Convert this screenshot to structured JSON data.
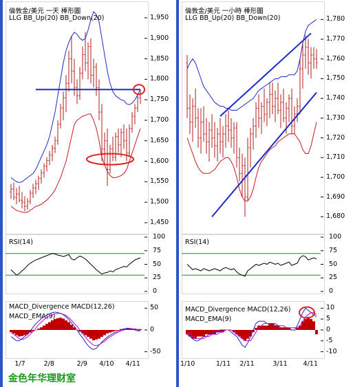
{
  "colors": {
    "price": "#b01818",
    "bb_up": "#1a2bc8",
    "bb_down": "#c81a1a",
    "rsi": "#000000",
    "rsi_band": "#1f8a1f",
    "macd_hist": "#c00000",
    "macd": "#1a2bc8",
    "ema": "#c800c8",
    "annot_line": "#1a2bc8",
    "annot_circle": "#e02020",
    "divider": "#2b58c8"
  },
  "footer": "金色年华理财室",
  "charts": [
    {
      "title": "倫敦金/美元 一天 棒形圖",
      "legend": "LLG  BB_Up(20)  BB_Down(20)",
      "rsi_label": "RSI(14)",
      "macd_label1": "MACD_Divergence   MACD(12,26)",
      "macd_label2": "MACD_EMA(9)",
      "price_ticks": [
        "1,950",
        "1,900",
        "1,850",
        "1,800",
        "1,750",
        "1,700",
        "1,650",
        "1,600",
        "1,550",
        "1,500",
        "1,450"
      ],
      "rsi_ticks": [
        "100",
        "75",
        "50",
        "25",
        "0"
      ],
      "macd_ticks": [
        "50",
        "0",
        "-50"
      ],
      "x_ticks": [
        "1/7",
        "2/8",
        "2/9",
        "4/10",
        "4/11"
      ]
    },
    {
      "title": "倫敦金/美元 一小時 棒形圖",
      "legend": "LLG  BB_Up(20)  BB_Down(20)",
      "rsi_label": "RSI(14)",
      "macd_label1": "MACD_Divergence   MACD(12,26)",
      "macd_label2": "MACD_EMA(9)",
      "price_ticks": [
        "1,780",
        "1,770",
        "1,760",
        "1,750",
        "1,740",
        "1,730",
        "1,720",
        "1,710",
        "1,700",
        "1,690",
        "1,680"
      ],
      "rsi_ticks": [
        "100",
        "75",
        "50",
        "25",
        "0"
      ],
      "macd_ticks": [
        "10",
        "5",
        "0",
        "-5",
        "-10"
      ],
      "x_ticks": [
        "1/10",
        "1/11",
        "2/11",
        "3/11",
        "4/11"
      ]
    }
  ],
  "chart_data": [
    {
      "type": "line",
      "name": "daily",
      "ylim": [
        1450,
        1970
      ],
      "price": [
        [
          1525,
          1545,
          1508,
          1532
        ],
        [
          1532,
          1548,
          1505,
          1512
        ],
        [
          1512,
          1535,
          1495,
          1520
        ],
        [
          1520,
          1540,
          1500,
          1505
        ],
        [
          1505,
          1525,
          1485,
          1500
        ],
        [
          1500,
          1515,
          1478,
          1490
        ],
        [
          1490,
          1510,
          1482,
          1502
        ],
        [
          1502,
          1530,
          1495,
          1522
        ],
        [
          1522,
          1545,
          1510,
          1535
        ],
        [
          1535,
          1555,
          1520,
          1545
        ],
        [
          1545,
          1565,
          1530,
          1558
        ],
        [
          1558,
          1580,
          1545,
          1572
        ],
        [
          1572,
          1595,
          1560,
          1588
        ],
        [
          1588,
          1610,
          1575,
          1602
        ],
        [
          1602,
          1625,
          1590,
          1615
        ],
        [
          1615,
          1640,
          1600,
          1632
        ],
        [
          1632,
          1660,
          1620,
          1650
        ],
        [
          1650,
          1700,
          1640,
          1690
        ],
        [
          1690,
          1740,
          1680,
          1730
        ],
        [
          1730,
          1770,
          1700,
          1755
        ],
        [
          1755,
          1810,
          1720,
          1790
        ],
        [
          1790,
          1870,
          1770,
          1850
        ],
        [
          1850,
          1905,
          1790,
          1820
        ],
        [
          1820,
          1850,
          1760,
          1780
        ],
        [
          1780,
          1800,
          1740,
          1760
        ],
        [
          1760,
          1830,
          1750,
          1815
        ],
        [
          1815,
          1880,
          1800,
          1860
        ],
        [
          1860,
          1915,
          1820,
          1840
        ],
        [
          1840,
          1890,
          1800,
          1880
        ],
        [
          1880,
          1900,
          1790,
          1810
        ],
        [
          1810,
          1850,
          1780,
          1830
        ],
        [
          1830,
          1840,
          1760,
          1780
        ],
        [
          1780,
          1800,
          1700,
          1720
        ],
        [
          1720,
          1740,
          1600,
          1630
        ],
        [
          1630,
          1670,
          1590,
          1650
        ],
        [
          1650,
          1680,
          1540,
          1580
        ],
        [
          1580,
          1640,
          1570,
          1630
        ],
        [
          1630,
          1660,
          1600,
          1610
        ],
        [
          1610,
          1670,
          1600,
          1660
        ],
        [
          1660,
          1680,
          1620,
          1640
        ],
        [
          1640,
          1680,
          1610,
          1670
        ],
        [
          1670,
          1690,
          1630,
          1650
        ],
        [
          1650,
          1680,
          1600,
          1620
        ],
        [
          1620,
          1690,
          1610,
          1680
        ],
        [
          1680,
          1720,
          1670,
          1710
        ],
        [
          1710,
          1740,
          1690,
          1730
        ],
        [
          1730,
          1760,
          1720,
          1755
        ],
        [
          1755,
          1775,
          1740,
          1765
        ]
      ],
      "bb_up": [
        1560,
        1555,
        1550,
        1548,
        1550,
        1555,
        1560,
        1565,
        1570,
        1580,
        1595,
        1610,
        1625,
        1640,
        1660,
        1690,
        1720,
        1760,
        1800,
        1840,
        1870,
        1890,
        1905,
        1915,
        1910,
        1900,
        1895,
        1900,
        1920,
        1945,
        1965,
        1958,
        1940,
        1900,
        1860,
        1820,
        1790,
        1770,
        1760,
        1755,
        1750,
        1748,
        1740,
        1738,
        1742,
        1750,
        1762,
        1775
      ],
      "bb_down": [
        1490,
        1485,
        1480,
        1478,
        1476,
        1475,
        1476,
        1480,
        1485,
        1490,
        1492,
        1495,
        1500,
        1505,
        1512,
        1520,
        1530,
        1545,
        1560,
        1580,
        1600,
        1630,
        1660,
        1690,
        1700,
        1705,
        1710,
        1712,
        1715,
        1715,
        1700,
        1680,
        1650,
        1610,
        1590,
        1575,
        1565,
        1560,
        1560,
        1562,
        1565,
        1570,
        1580,
        1600,
        1620,
        1640,
        1660,
        1680
      ],
      "hline": 1775,
      "rsi": [
        40,
        35,
        30,
        33,
        38,
        42,
        48,
        52,
        55,
        58,
        60,
        62,
        64,
        66,
        68,
        70,
        69,
        67,
        66,
        64,
        66,
        68,
        60,
        58,
        62,
        65,
        63,
        60,
        55,
        50,
        45,
        40,
        36,
        32,
        34,
        35,
        38,
        36,
        40,
        42,
        44,
        46,
        45,
        50,
        54,
        58,
        60,
        62
      ],
      "macd_hist": [
        -5,
        -8,
        -12,
        -15,
        -14,
        -12,
        -10,
        -6,
        -3,
        0,
        3,
        6,
        10,
        14,
        18,
        22,
        25,
        27,
        28,
        26,
        22,
        18,
        12,
        6,
        0,
        -4,
        -8,
        -12,
        -16,
        -20,
        -24,
        -22,
        -20,
        -16,
        -12,
        -8,
        -6,
        -4,
        -2,
        0,
        2,
        3,
        4,
        4,
        3,
        3,
        2,
        2
      ],
      "macd": [
        -15,
        -20,
        -25,
        -25,
        -20,
        -15,
        -10,
        -2,
        6,
        14,
        20,
        26,
        30,
        34,
        37,
        40,
        41,
        40,
        38,
        35,
        30,
        24,
        16,
        8,
        0,
        -10,
        -18,
        -28,
        -36,
        -42,
        -45,
        -42,
        -35,
        -28,
        -22,
        -16,
        -12,
        -8,
        -5,
        -2,
        0,
        2,
        4,
        4,
        2,
        0,
        -2,
        -2
      ],
      "ema": [
        -5,
        -10,
        -15,
        -20,
        -22,
        -20,
        -16,
        -10,
        -4,
        4,
        12,
        18,
        24,
        28,
        32,
        35,
        37,
        38,
        38,
        36,
        33,
        28,
        22,
        15,
        8,
        0,
        -8,
        -16,
        -24,
        -30,
        -35,
        -36,
        -34,
        -30,
        -26,
        -20,
        -16,
        -12,
        -8,
        -5,
        -2,
        0,
        2,
        3,
        3,
        2,
        0,
        -1
      ],
      "rsi_bands": [
        70,
        30
      ],
      "circles": [
        {
          "cx_index": 46.5,
          "price": 1775
        },
        {
          "cx_index": 36,
          "price": 1605
        }
      ]
    },
    {
      "type": "line",
      "name": "hourly",
      "ylim": [
        1677,
        1785
      ],
      "price": [
        [
          1758,
          1762,
          1730,
          1735
        ],
        [
          1735,
          1742,
          1722,
          1728
        ],
        [
          1728,
          1740,
          1718,
          1736
        ],
        [
          1736,
          1745,
          1725,
          1730
        ],
        [
          1730,
          1735,
          1715,
          1720
        ],
        [
          1720,
          1735,
          1712,
          1728
        ],
        [
          1728,
          1736,
          1718,
          1722
        ],
        [
          1722,
          1730,
          1712,
          1718
        ],
        [
          1718,
          1728,
          1708,
          1724
        ],
        [
          1724,
          1732,
          1715,
          1720
        ],
        [
          1720,
          1728,
          1710,
          1716
        ],
        [
          1716,
          1725,
          1708,
          1722
        ],
        [
          1722,
          1730,
          1712,
          1718
        ],
        [
          1718,
          1726,
          1710,
          1722
        ],
        [
          1722,
          1732,
          1715,
          1726
        ],
        [
          1726,
          1734,
          1718,
          1724
        ],
        [
          1724,
          1730,
          1715,
          1720
        ],
        [
          1720,
          1728,
          1712,
          1725
        ],
        [
          1725,
          1728,
          1705,
          1710
        ],
        [
          1710,
          1715,
          1698,
          1702
        ],
        [
          1702,
          1712,
          1690,
          1706
        ],
        [
          1706,
          1710,
          1680,
          1690
        ],
        [
          1690,
          1720,
          1688,
          1715
        ],
        [
          1715,
          1725,
          1705,
          1722
        ],
        [
          1722,
          1730,
          1714,
          1726
        ],
        [
          1726,
          1738,
          1720,
          1735
        ],
        [
          1735,
          1742,
          1725,
          1730
        ],
        [
          1730,
          1738,
          1722,
          1736
        ],
        [
          1736,
          1745,
          1728,
          1732
        ],
        [
          1732,
          1740,
          1726,
          1738
        ],
        [
          1738,
          1748,
          1730,
          1742
        ],
        [
          1742,
          1748,
          1732,
          1736
        ],
        [
          1736,
          1744,
          1728,
          1740
        ],
        [
          1740,
          1748,
          1732,
          1734
        ],
        [
          1734,
          1742,
          1725,
          1738
        ],
        [
          1738,
          1745,
          1728,
          1730
        ],
        [
          1730,
          1738,
          1722,
          1735
        ],
        [
          1735,
          1742,
          1728,
          1740
        ],
        [
          1740,
          1745,
          1722,
          1726
        ],
        [
          1726,
          1736,
          1722,
          1732
        ],
        [
          1732,
          1740,
          1728,
          1736
        ],
        [
          1736,
          1760,
          1732,
          1755
        ],
        [
          1755,
          1768,
          1745,
          1762
        ],
        [
          1762,
          1772,
          1755,
          1766
        ],
        [
          1766,
          1770,
          1752,
          1758
        ],
        [
          1758,
          1766,
          1750,
          1762
        ],
        [
          1762,
          1766,
          1755,
          1760
        ],
        [
          1760,
          1765,
          1755,
          1758
        ]
      ],
      "bb_up": [
        1755,
        1758,
        1760,
        1758,
        1754,
        1750,
        1746,
        1744,
        1742,
        1740,
        1738,
        1737,
        1736,
        1736,
        1735,
        1735,
        1734,
        1734,
        1734,
        1735,
        1736,
        1737,
        1738,
        1739,
        1740,
        1742,
        1744,
        1745,
        1746,
        1747,
        1748,
        1749,
        1750,
        1750,
        1751,
        1751,
        1751,
        1752,
        1752,
        1752,
        1754,
        1760,
        1768,
        1774,
        1777,
        1778,
        1779,
        1780
      ],
      "bb_down": [
        1720,
        1716,
        1712,
        1708,
        1705,
        1703,
        1702,
        1702,
        1702,
        1703,
        1704,
        1706,
        1708,
        1709,
        1710,
        1710,
        1708,
        1705,
        1700,
        1694,
        1690,
        1688,
        1688,
        1690,
        1694,
        1700,
        1705,
        1708,
        1710,
        1712,
        1714,
        1715,
        1716,
        1718,
        1719,
        1720,
        1721,
        1722,
        1722,
        1722,
        1720,
        1718,
        1714,
        1712,
        1712,
        1716,
        1722,
        1728
      ],
      "channel_upper": [
        [
          12,
          1731
        ],
        [
          45,
          1773
        ]
      ],
      "channel_lower": [
        [
          9,
          1680
        ],
        [
          47,
          1743
        ]
      ],
      "rsi": [
        50,
        45,
        40,
        42,
        40,
        38,
        42,
        40,
        38,
        40,
        42,
        40,
        38,
        42,
        44,
        42,
        40,
        42,
        36,
        32,
        30,
        28,
        38,
        42,
        46,
        50,
        48,
        50,
        52,
        50,
        54,
        52,
        50,
        52,
        48,
        50,
        52,
        54,
        48,
        50,
        52,
        62,
        66,
        64,
        58,
        60,
        62,
        60
      ],
      "macd_hist": [
        -2,
        -3,
        -4,
        -4,
        -3,
        -3,
        -3,
        -2,
        -2,
        -2,
        -2,
        -1,
        -1,
        -1,
        0,
        0,
        0,
        -1,
        -2,
        -3,
        -4,
        -5,
        -4,
        -3,
        -1,
        1,
        2,
        2,
        2,
        2,
        3,
        3,
        2,
        2,
        1,
        1,
        1,
        1,
        0,
        0,
        1,
        2,
        4,
        5,
        6,
        5,
        4,
        -2
      ],
      "macd": [
        -2,
        -3,
        -4,
        -5,
        -5,
        -4,
        -3,
        -3,
        -2,
        -2,
        -1,
        -1,
        0,
        0,
        0,
        0,
        -1,
        -2,
        -3,
        -5,
        -7,
        -8,
        -6,
        -3,
        0,
        3,
        4,
        4,
        4,
        3,
        3,
        3,
        2,
        2,
        1,
        1,
        1,
        1,
        0,
        0,
        2,
        5,
        8,
        10,
        9,
        8,
        7,
        6
      ],
      "ema": [
        -1,
        -2,
        -3,
        -4,
        -4,
        -4,
        -4,
        -3,
        -3,
        -2,
        -2,
        -2,
        -1,
        -1,
        0,
        0,
        0,
        -1,
        -2,
        -3,
        -4,
        -5,
        -5,
        -5,
        -3,
        -1,
        1,
        2,
        3,
        3,
        3,
        3,
        3,
        2,
        2,
        2,
        1,
        1,
        1,
        1,
        1,
        2,
        4,
        6,
        7,
        8,
        8,
        7
      ],
      "rsi_bands": [
        70,
        30
      ],
      "circles": [
        {
          "cx_index": 43.5,
          "macd": 8
        }
      ]
    }
  ]
}
